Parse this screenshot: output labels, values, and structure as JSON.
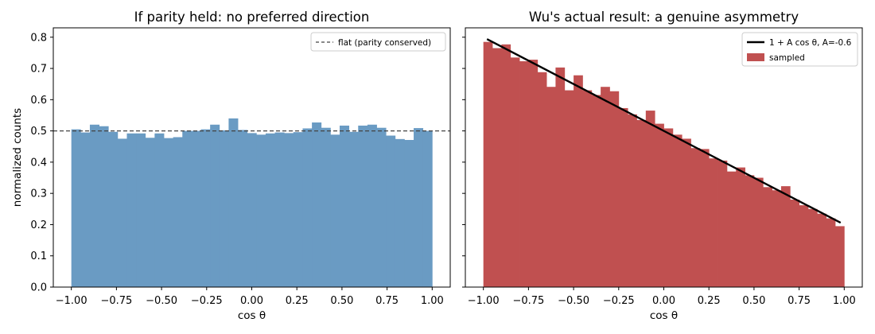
{
  "chart_data": [
    {
      "type": "bar",
      "title": "If parity held: no preferred direction",
      "xlabel": "cos θ",
      "ylabel": "normalized counts",
      "xlim": [
        -1.1,
        1.1
      ],
      "ylim": [
        0,
        0.83
      ],
      "xticks": [
        -1.0,
        -0.75,
        -0.5,
        -0.25,
        0.0,
        0.25,
        0.5,
        0.75,
        1.0
      ],
      "xtick_labels": [
        "−1.00",
        "−0.75",
        "−0.50",
        "−0.25",
        "0.00",
        "0.25",
        "0.50",
        "0.75",
        "1.00"
      ],
      "yticks": [
        0.0,
        0.1,
        0.2,
        0.3,
        0.4,
        0.5,
        0.6,
        0.7,
        0.8
      ],
      "ytick_labels": [
        "0.0",
        "0.1",
        "0.2",
        "0.3",
        "0.4",
        "0.5",
        "0.6",
        "0.7",
        "0.8"
      ],
      "bin_range": [
        -1.0,
        1.0
      ],
      "bar_color": "#6a9bc3",
      "values": [
        0.505,
        0.495,
        0.52,
        0.515,
        0.497,
        0.475,
        0.492,
        0.492,
        0.478,
        0.492,
        0.477,
        0.48,
        0.5,
        0.5,
        0.505,
        0.52,
        0.502,
        0.54,
        0.503,
        0.493,
        0.488,
        0.492,
        0.495,
        0.493,
        0.496,
        0.508,
        0.527,
        0.51,
        0.488,
        0.517,
        0.497,
        0.517,
        0.52,
        0.51,
        0.485,
        0.474,
        0.471,
        0.509,
        0.5
      ],
      "reference_lines": [
        {
          "name": "flat (parity conserved)",
          "y": 0.5,
          "style": "dashed",
          "color": "#444444"
        }
      ],
      "legend": {
        "position": "top-right",
        "entries": [
          {
            "label": "flat (parity conserved)",
            "kind": "dashed-line",
            "color": "#444444"
          }
        ]
      },
      "grid": false
    },
    {
      "type": "bar",
      "title": "Wu's actual result: a genuine asymmetry",
      "xlabel": "cos θ",
      "ylabel": "",
      "xlim": [
        -1.1,
        1.1
      ],
      "ylim": [
        0,
        0.83
      ],
      "xticks": [
        -1.0,
        -0.75,
        -0.5,
        -0.25,
        0.0,
        0.25,
        0.5,
        0.75,
        1.0
      ],
      "xtick_labels": [
        "−1.00",
        "−0.75",
        "−0.50",
        "−0.25",
        "0.00",
        "0.25",
        "0.50",
        "0.75",
        "1.00"
      ],
      "yticks": [
        0.0,
        0.1,
        0.2,
        0.3,
        0.4,
        0.5,
        0.6,
        0.7,
        0.8
      ],
      "ytick_labels": [],
      "bin_range": [
        -1.0,
        1.0
      ],
      "bar_color": "#c05050",
      "values": [
        0.785,
        0.765,
        0.777,
        0.735,
        0.723,
        0.728,
        0.688,
        0.641,
        0.703,
        0.63,
        0.678,
        0.63,
        0.615,
        0.641,
        0.627,
        0.573,
        0.553,
        0.535,
        0.565,
        0.523,
        0.508,
        0.488,
        0.475,
        0.445,
        0.442,
        0.412,
        0.405,
        0.37,
        0.383,
        0.358,
        0.35,
        0.32,
        0.31,
        0.323,
        0.28,
        0.262,
        0.25,
        0.235,
        0.22,
        0.195
      ],
      "fit_line": {
        "x": [
          -0.98,
          0.98
        ],
        "y": [
          0.794,
          0.206
        ],
        "color": "#000000"
      },
      "legend": {
        "position": "top-right",
        "entries": [
          {
            "label": "1 + A cos θ, A=-0.6",
            "kind": "solid-line",
            "color": "#000000"
          },
          {
            "label": "sampled",
            "kind": "patch",
            "color": "#c05050"
          }
        ]
      },
      "grid": false
    }
  ]
}
